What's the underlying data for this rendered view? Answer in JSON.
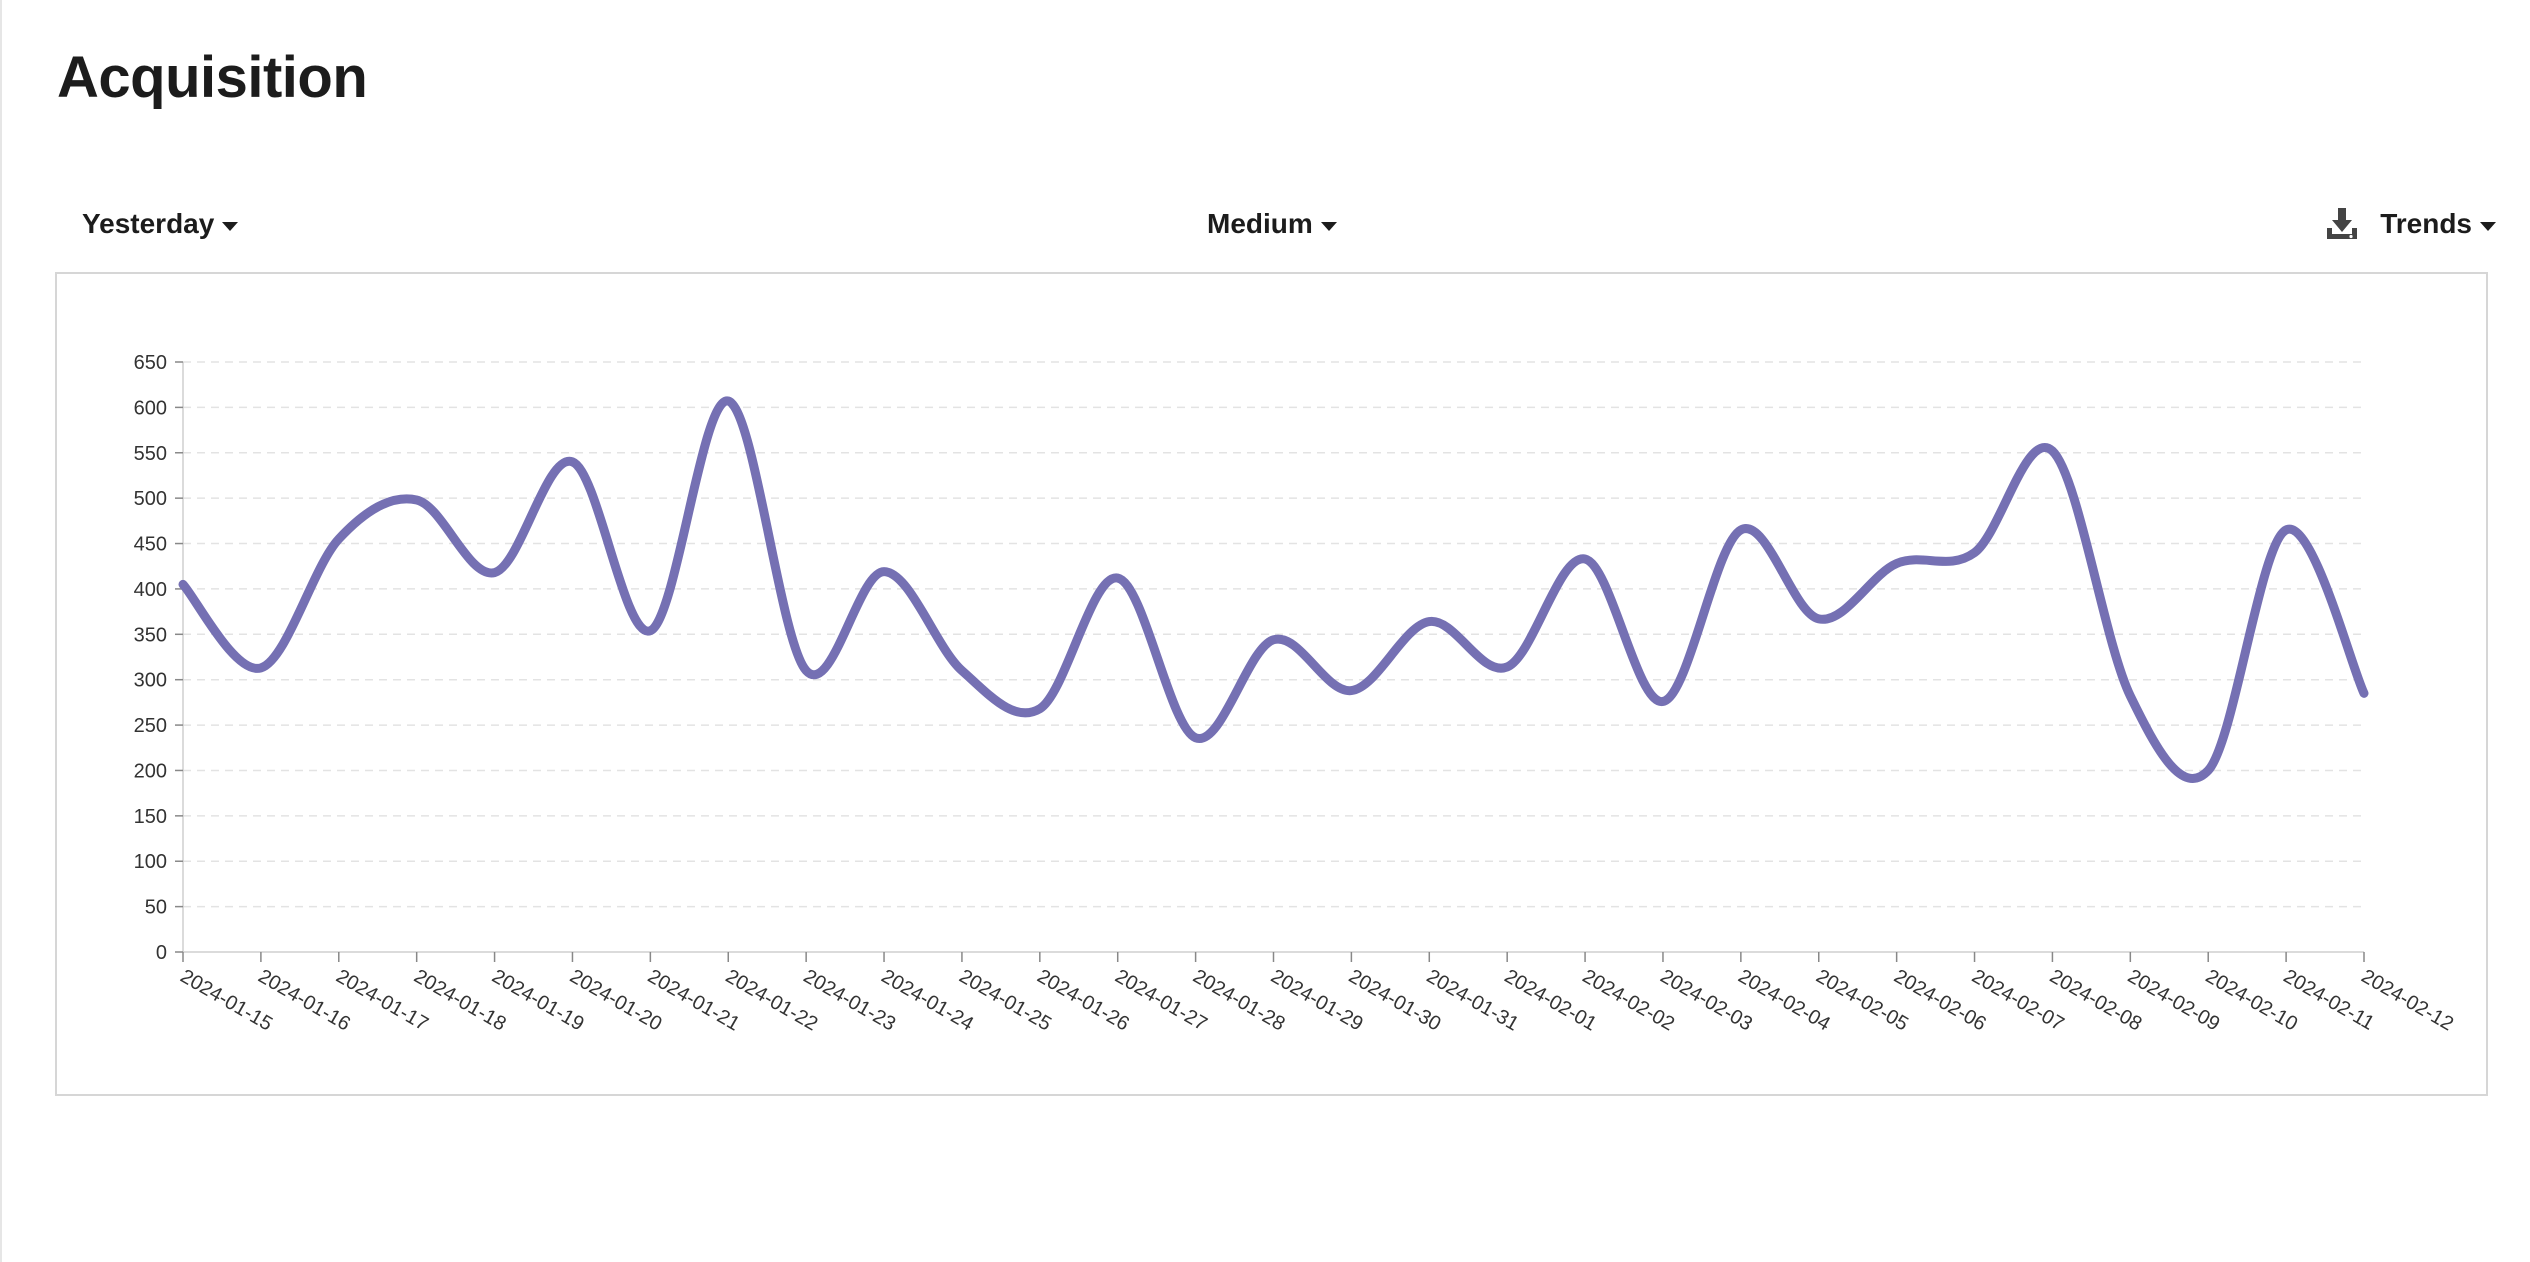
{
  "page": {
    "title": "Acquisition"
  },
  "toolbar": {
    "date_range": "Yesterday",
    "dimension": "Medium",
    "view": "Trends",
    "download_icon": "download-icon"
  },
  "colors": {
    "series": "#7570b3",
    "grid": "#e3e3e3",
    "panel_border": "#d6d6d6"
  },
  "chart_data": {
    "type": "line",
    "title": "",
    "xlabel": "",
    "ylabel": "",
    "ylim": [
      0,
      650
    ],
    "yticks": [
      0,
      50,
      100,
      150,
      200,
      250,
      300,
      350,
      400,
      450,
      500,
      550,
      600,
      650
    ],
    "grid": "horizontal-dashed",
    "legend": "none",
    "categories": [
      "2024-01-15",
      "2024-01-16",
      "2024-01-17",
      "2024-01-18",
      "2024-01-19",
      "2024-01-20",
      "2024-01-21",
      "2024-01-22",
      "2024-01-23",
      "2024-01-24",
      "2024-01-25",
      "2024-01-26",
      "2024-01-27",
      "2024-01-28",
      "2024-01-29",
      "2024-01-30",
      "2024-01-31",
      "2024-02-01",
      "2024-02-02",
      "2024-02-03",
      "2024-02-04",
      "2024-02-05",
      "2024-02-06",
      "2024-02-07",
      "2024-02-08",
      "2024-02-09",
      "2024-02-10",
      "2024-02-11",
      "2024-02-12"
    ],
    "series": [
      {
        "values": [
          405,
          313,
          455,
          498,
          418,
          540,
          354,
          607,
          310,
          419,
          310,
          268,
          412,
          236,
          344,
          288,
          364,
          314,
          433,
          276,
          465,
          367,
          428,
          440,
          552,
          282,
          200,
          465,
          285
        ]
      }
    ]
  }
}
